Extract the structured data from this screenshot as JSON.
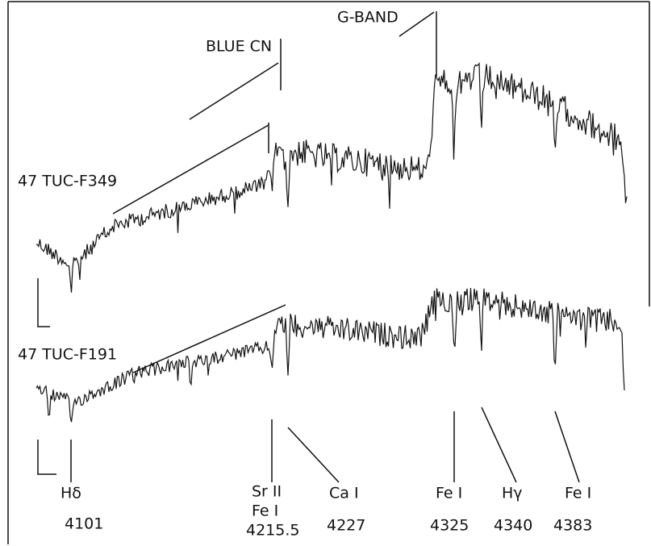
{
  "figure": {
    "stars": [
      "47 TUC-F349",
      "47 TUC-F191"
    ],
    "bands": [
      "BLUE CN",
      "G-BAND"
    ],
    "lines": [
      {
        "species": [
          "Hδ"
        ],
        "wavelength": 4101
      },
      {
        "species": [
          "Sr II",
          "Fe I"
        ],
        "wavelength": 4215.5
      },
      {
        "species": [
          "Ca I"
        ],
        "wavelength": 4227
      },
      {
        "species": [
          "Fe I"
        ],
        "wavelength": 4325
      },
      {
        "species": [
          "Hγ"
        ],
        "wavelength": 4340
      },
      {
        "species": [
          "Fe I"
        ],
        "wavelength": 4383
      }
    ]
  }
}
